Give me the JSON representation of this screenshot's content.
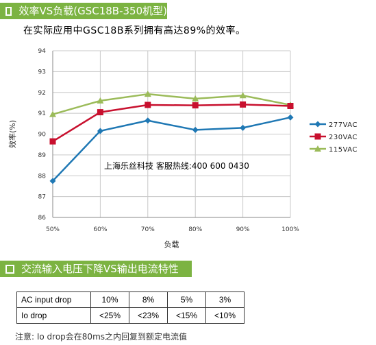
{
  "section1": {
    "title": "效率VS负载(GSC18B-350机型)"
  },
  "subtitle": "在实际应用中GSC18B系列拥有高达89%的效率。",
  "chart_data": {
    "type": "line",
    "xlabel": "负载",
    "ylabel": "效率(%)",
    "categories": [
      "50%",
      "60%",
      "70%",
      "80%",
      "90%",
      "100%"
    ],
    "ylim": [
      86,
      94
    ],
    "yticks": [
      86,
      87,
      88,
      89,
      90,
      91,
      92,
      93,
      94
    ],
    "grid": true,
    "legend_position": "right",
    "annotation": "上海乐丝科技 客服热线:400 600 0430",
    "series": [
      {
        "name": "277VAC",
        "color": "#1f78b4",
        "marker": "diamond",
        "values": [
          87.75,
          90.15,
          90.65,
          90.2,
          90.3,
          90.8
        ]
      },
      {
        "name": "230VAC",
        "color": "#c8102e",
        "marker": "square",
        "values": [
          89.65,
          91.05,
          91.4,
          91.38,
          91.42,
          91.35
        ]
      },
      {
        "name": "115VAC",
        "color": "#9bbb59",
        "marker": "triangle",
        "values": [
          90.95,
          91.6,
          91.92,
          91.7,
          91.85,
          91.4
        ]
      }
    ]
  },
  "section2": {
    "title": "交流输入电压下降VS输出电流特性"
  },
  "table": {
    "rows": [
      [
        "AC input drop",
        "10%",
        "8%",
        "5%",
        "3%"
      ],
      [
        "Io drop",
        "<25%",
        "<23%",
        "<15%",
        "<10%"
      ]
    ]
  },
  "note": "注意: Io drop会在80ms之内回复到额定电流值"
}
